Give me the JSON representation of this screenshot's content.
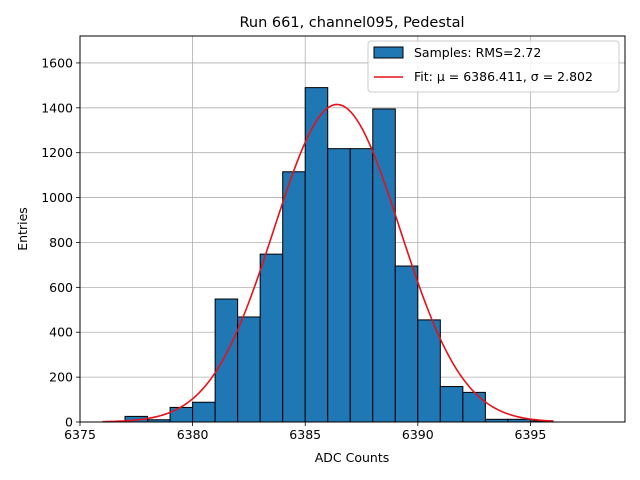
{
  "chart_data": {
    "type": "bar",
    "title": "Run 661, channel095, Pedestal",
    "xlabel": "ADC Counts",
    "ylabel": "Entries",
    "xlim": [
      6375,
      6399.2
    ],
    "ylim": [
      0,
      1720
    ],
    "xticks": [
      6375,
      6380,
      6385,
      6390,
      6395
    ],
    "yticks": [
      0,
      200,
      400,
      600,
      800,
      1000,
      1200,
      1400,
      1600
    ],
    "grid": true,
    "bin_width": 1,
    "bins": [
      {
        "x0": 6377,
        "count": 25
      },
      {
        "x0": 6378,
        "count": 10
      },
      {
        "x0": 6379,
        "count": 65
      },
      {
        "x0": 6380,
        "count": 88
      },
      {
        "x0": 6381,
        "count": 548
      },
      {
        "x0": 6382,
        "count": 468
      },
      {
        "x0": 6383,
        "count": 748
      },
      {
        "x0": 6384,
        "count": 1115
      },
      {
        "x0": 6385,
        "count": 1490
      },
      {
        "x0": 6386,
        "count": 1218
      },
      {
        "x0": 6387,
        "count": 1218
      },
      {
        "x0": 6388,
        "count": 1395
      },
      {
        "x0": 6389,
        "count": 695
      },
      {
        "x0": 6390,
        "count": 455
      },
      {
        "x0": 6391,
        "count": 158
      },
      {
        "x0": 6392,
        "count": 132
      },
      {
        "x0": 6393,
        "count": 12
      },
      {
        "x0": 6394,
        "count": 12
      },
      {
        "x0": 6395,
        "count": 5
      }
    ],
    "fit": {
      "mu": 6386.411,
      "sigma": 2.802,
      "amplitude": 1415,
      "range": [
        6376,
        6396
      ]
    },
    "legend": {
      "position": "top-right",
      "entries": [
        {
          "name": "samples",
          "label": "Samples: RMS=2.72"
        },
        {
          "name": "fit",
          "label": "Fit: μ = 6386.411, σ = 2.802"
        }
      ]
    },
    "colors": {
      "bar_fill": "#1f77b4",
      "bar_edge": "#000000",
      "fit_line": "#e8101a",
      "grid": "#b0b0b0"
    }
  }
}
